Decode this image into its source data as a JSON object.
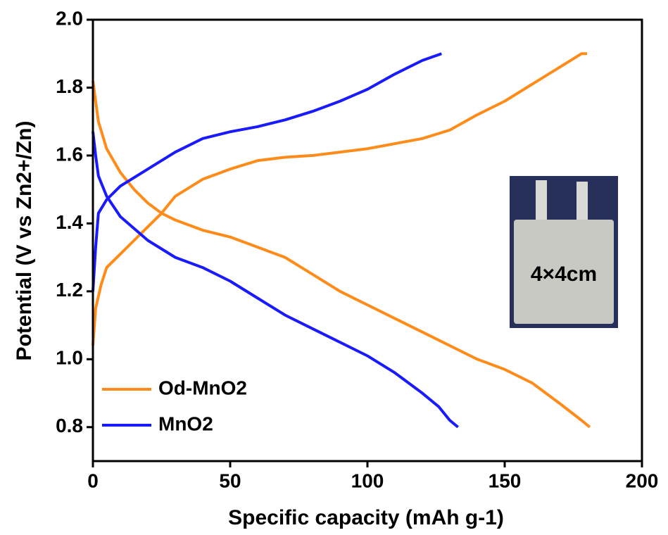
{
  "chart_data": {
    "type": "line",
    "xlabel": "Specific capacity (mAh g-1)",
    "ylabel": "Potential (V vs Zn2+/Zn)",
    "annotation": "4×4cm",
    "xlim": [
      0,
      200
    ],
    "xticks": [
      0,
      50,
      100,
      150,
      200
    ],
    "ylim": [
      0.7,
      2.0
    ],
    "yticks": [
      0.8,
      {
        "value": 1,
        "label": "1.0"
      },
      1.2,
      1.4,
      1.6,
      1.8,
      {
        "value": 2,
        "label": "2.0"
      }
    ],
    "series": [
      {
        "name": "Od-MnO2",
        "color": "#ff8c1a",
        "x": [
          0,
          2,
          5,
          10,
          15,
          20,
          25,
          30,
          40,
          50,
          60,
          70,
          80,
          90,
          100,
          110,
          120,
          130,
          140,
          150,
          160,
          170,
          178,
          181,
          null,
          0,
          1,
          3,
          5,
          10,
          15,
          20,
          25,
          30,
          40,
          50,
          60,
          70,
          80,
          90,
          100,
          110,
          120,
          130,
          140,
          150,
          160,
          170,
          178,
          180
        ],
        "values": [
          1.82,
          1.7,
          1.62,
          1.55,
          1.5,
          1.46,
          1.43,
          1.41,
          1.38,
          1.36,
          1.33,
          1.3,
          1.25,
          1.2,
          1.16,
          1.12,
          1.08,
          1.04,
          1.0,
          0.97,
          0.93,
          0.87,
          0.82,
          0.8,
          null,
          1.04,
          1.15,
          1.22,
          1.27,
          1.31,
          1.35,
          1.39,
          1.43,
          1.48,
          1.53,
          1.56,
          1.585,
          1.595,
          1.6,
          1.61,
          1.62,
          1.635,
          1.65,
          1.675,
          1.72,
          1.76,
          1.81,
          1.86,
          1.9,
          1.9
        ]
      },
      {
        "name": "MnO2",
        "color": "#1a1aff",
        "x": [
          0,
          1,
          2,
          5,
          10,
          20,
          30,
          40,
          50,
          60,
          70,
          80,
          90,
          100,
          110,
          120,
          126,
          130,
          133,
          null,
          0,
          1,
          2,
          5,
          10,
          20,
          30,
          40,
          50,
          60,
          70,
          80,
          90,
          100,
          110,
          120,
          127
        ],
        "values": [
          1.67,
          1.6,
          1.54,
          1.48,
          1.42,
          1.35,
          1.3,
          1.27,
          1.23,
          1.18,
          1.13,
          1.09,
          1.05,
          1.01,
          0.96,
          0.9,
          0.86,
          0.82,
          0.8,
          null,
          1.2,
          1.33,
          1.43,
          1.47,
          1.51,
          1.56,
          1.61,
          1.65,
          1.67,
          1.685,
          1.705,
          1.73,
          1.76,
          1.795,
          1.84,
          1.88,
          1.9
        ]
      }
    ]
  }
}
